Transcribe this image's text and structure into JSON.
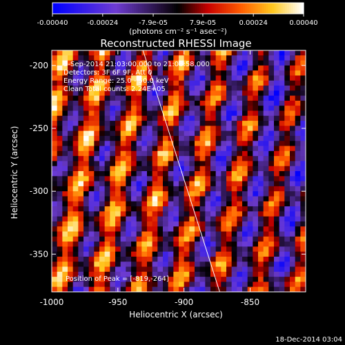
{
  "chart_data": {
    "type": "heatmap",
    "title": "Reconstructed RHESSI Image",
    "xlabel": "Heliocentric X (arcsec)",
    "ylabel": "Heliocentric Y (arcsec)",
    "xlim": [
      -1000,
      -808
    ],
    "ylim": [
      -380,
      -188
    ],
    "x_ticks": [
      -1000,
      -950,
      -900,
      -850
    ],
    "x_tick_labels": [
      "-1000",
      "-950",
      "-900",
      "-850"
    ],
    "y_ticks": [
      -200,
      -250,
      -300,
      -350
    ],
    "y_tick_labels": [
      "-200",
      "-250",
      "-300",
      "-350"
    ],
    "colorbar": {
      "range": [
        -0.0004,
        0.0004
      ],
      "ticks": [
        -0.0004,
        -0.00024,
        -7.9e-05,
        7.9e-05,
        0.00024,
        0.0004
      ],
      "tick_labels": [
        "-0.00040",
        "-0.00024",
        "-7.9e-05",
        "7.9e-05",
        "0.00024",
        "0.00040"
      ],
      "units": "(photons cm⁻² s⁻¹ asec⁻²)"
    },
    "annotations": [
      "5-Sep-2014 21:03:00.000 to 21:08:58.000",
      "Detectors: 3F 6F 9F, Att 0",
      "Energy Range: 25.0 - 50.0 keV",
      "Clean    Total counts: 2.24E+05"
    ],
    "peak_label": "Position of Peak = [-819,-264]",
    "limb_line": {
      "x": [
        -931,
        -873
      ],
      "y": [
        -188,
        -380
      ]
    },
    "pixel_grid": {
      "nx": 48,
      "ny": 48,
      "pixel_size_arcsec": 4
    }
  },
  "footer": {
    "timestamp": "18-Dec-2014 03:04"
  }
}
